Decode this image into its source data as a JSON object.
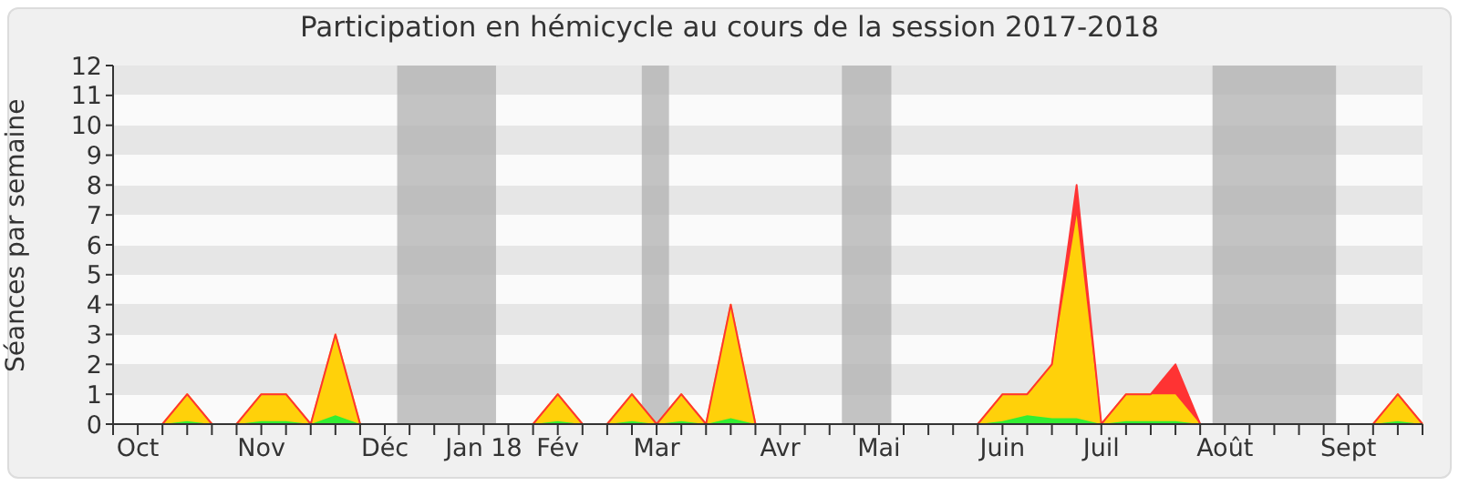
{
  "chart_data": {
    "type": "area",
    "title": "Participation en hémicycle au cours de la session 2017-2018",
    "ylabel": "Séances par semaine",
    "stacked": true,
    "categories": [
      null,
      "Oct",
      null,
      null,
      null,
      null,
      "Nov",
      null,
      null,
      null,
      null,
      "Déc",
      null,
      null,
      null,
      "Jan 18",
      null,
      null,
      "Fév",
      null,
      null,
      null,
      "Mar",
      null,
      null,
      null,
      null,
      "Avr",
      null,
      null,
      null,
      "Mai",
      null,
      null,
      null,
      null,
      "Juin",
      null,
      null,
      null,
      "Juil",
      null,
      null,
      null,
      null,
      "Août",
      null,
      null,
      null,
      null,
      "Sept",
      null,
      null,
      null
    ],
    "ylim": [
      0,
      12
    ],
    "yticks": [
      0,
      1,
      2,
      3,
      4,
      5,
      6,
      7,
      8,
      9,
      10,
      11,
      12
    ],
    "series": [
      {
        "color": "#33ee33",
        "values": [
          0,
          0,
          0,
          0.1,
          0,
          0,
          0.1,
          0.1,
          0,
          0.3,
          0,
          0,
          0,
          0,
          0,
          0,
          0,
          0,
          0.1,
          0,
          0,
          0.1,
          0,
          0.1,
          0,
          0.2,
          0,
          0,
          0,
          0,
          0,
          0,
          0,
          0,
          0,
          0,
          0.1,
          0.3,
          0.2,
          0.2,
          0,
          0.1,
          0.1,
          0.1,
          0,
          0,
          0,
          0,
          0,
          0,
          0,
          0,
          0.1,
          0
        ]
      },
      {
        "color": "#ffd10a",
        "values": [
          0,
          0,
          0,
          0.9,
          0,
          0,
          0.9,
          0.9,
          0,
          2.7,
          0,
          0,
          0,
          0,
          0,
          0,
          0,
          0,
          0.9,
          0,
          0,
          0.9,
          0,
          0.9,
          0,
          3.8,
          0,
          0,
          0,
          0,
          0,
          0,
          0,
          0,
          0,
          0,
          0.9,
          0.7,
          1.8,
          6.8,
          0,
          0.9,
          0.9,
          0.9,
          0,
          0,
          0,
          0,
          0,
          0,
          0,
          0,
          0.9,
          0
        ]
      },
      {
        "color": "#ff3333",
        "values": [
          0,
          0,
          0,
          0,
          0,
          0,
          0,
          0,
          0,
          0,
          0,
          0,
          0,
          0,
          0,
          0,
          0,
          0,
          0,
          0,
          0,
          0,
          0,
          0,
          0,
          0,
          0,
          0,
          0,
          0,
          0,
          0,
          0,
          0,
          0,
          0,
          0,
          0,
          0,
          1,
          0,
          0,
          0,
          1,
          0,
          0,
          0,
          0,
          0,
          0,
          0,
          0,
          0,
          0
        ]
      }
    ]
  }
}
